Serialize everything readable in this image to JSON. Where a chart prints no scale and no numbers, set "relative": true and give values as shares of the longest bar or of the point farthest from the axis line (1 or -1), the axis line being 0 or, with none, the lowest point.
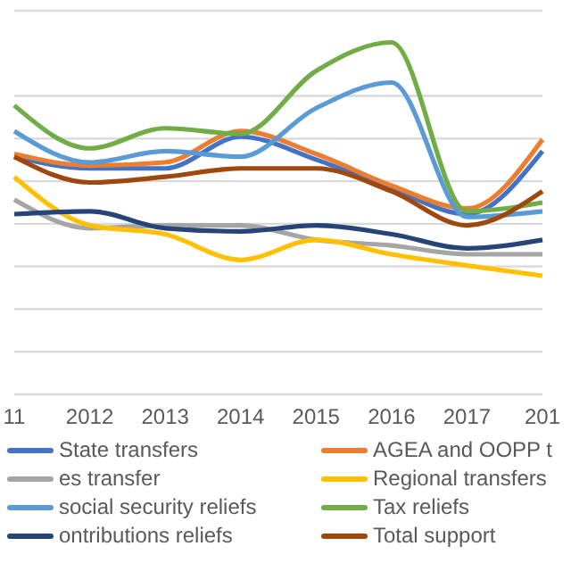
{
  "chart_data": {
    "type": "line",
    "relative": true,
    "grid": "y",
    "legend": "bottom",
    "marker": "none",
    "line_style": "solid",
    "categories": [
      "11",
      "2012",
      "2013",
      "2014",
      "2015",
      "2016",
      "2017",
      "201"
    ],
    "series": [
      {
        "name": "State transfers",
        "color": "#4472c4",
        "values": [
          0.675,
          0.642,
          0.642,
          0.732,
          0.667,
          0.585,
          0.512,
          0.691
        ]
      },
      {
        "name": "AGEA and OOPP t",
        "color": "#ed7d31",
        "values": [
          0.683,
          0.65,
          0.659,
          0.748,
          0.683,
          0.593,
          0.528,
          0.724
        ]
      },
      {
        "name": "es transfer",
        "color": "#a5a5a5",
        "values": [
          0.553,
          0.472,
          0.48,
          0.48,
          0.439,
          0.423,
          0.398,
          0.398
        ]
      },
      {
        "name": "Regional transfers",
        "color": "#ffc000",
        "values": [
          0.618,
          0.48,
          0.455,
          0.382,
          0.439,
          0.398,
          0.366,
          0.337
        ]
      },
      {
        "name": "social security reliefs",
        "color": "#5b9bd5",
        "values": [
          0.748,
          0.659,
          0.691,
          0.675,
          0.813,
          0.886,
          0.504,
          0.52
        ]
      },
      {
        "name": "Tax reliefs",
        "color": "#70ad47",
        "values": [
          0.821,
          0.699,
          0.756,
          0.74,
          0.919,
          1,
          0.52,
          0.545
        ]
      },
      {
        "name": "ontributions reliefs",
        "color": "#264478",
        "values": [
          0.512,
          0.52,
          0.472,
          0.463,
          0.48,
          0.455,
          0.415,
          0.439
        ]
      },
      {
        "name": "Total support",
        "color": "#9e480e",
        "values": [
          0.675,
          0.602,
          0.618,
          0.642,
          0.642,
          0.577,
          0.48,
          0.577
        ]
      }
    ]
  }
}
